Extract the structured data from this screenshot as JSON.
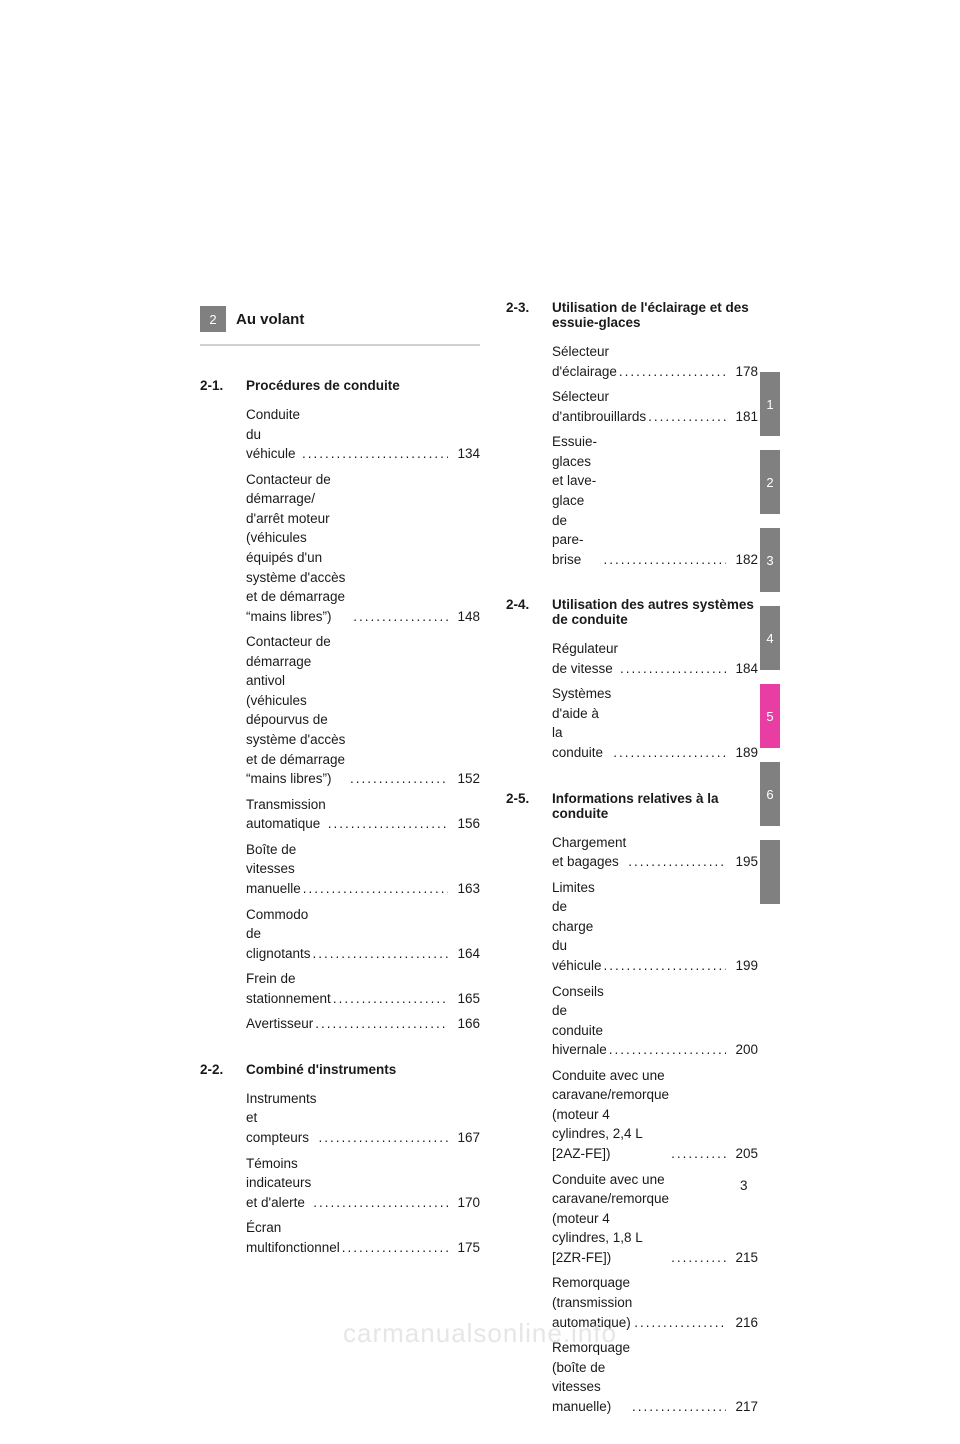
{
  "chapter": {
    "number": "2",
    "title": "Au volant"
  },
  "page_number": "3",
  "watermark": "carmanualsonline.info",
  "tabs": [
    {
      "label": "1",
      "color": "#808080"
    },
    {
      "label": "2",
      "color": "#808080"
    },
    {
      "label": "3",
      "color": "#808080"
    },
    {
      "label": "4",
      "color": "#808080"
    },
    {
      "label": "5",
      "color": "#e83ea3"
    },
    {
      "label": "6",
      "color": "#808080"
    },
    {
      "label": "",
      "color": "#808080"
    }
  ],
  "left": [
    {
      "num": "2-1.",
      "title": "Procédures de conduite",
      "entries": [
        {
          "label": "Conduite du véhicule",
          "page": "134"
        },
        {
          "label": "Contacteur de démarrage/ d'arrêt moteur (véhicules équipés d'un système d'accès et de démarrage “mains libres”)",
          "page": "148"
        },
        {
          "label": "Contacteur de démarrage antivol (véhicules dépourvus de système d'accès et de démarrage “mains libres”)",
          "page": "152"
        },
        {
          "label": "Transmission automatique",
          "page": "156"
        },
        {
          "label": "Boîte de vitesses manuelle",
          "page": "163"
        },
        {
          "label": "Commodo de clignotants",
          "page": "164"
        },
        {
          "label": "Frein de stationnement",
          "page": "165"
        },
        {
          "label": "Avertisseur",
          "page": "166"
        }
      ]
    },
    {
      "num": "2-2.",
      "title": "Combiné d'instruments",
      "entries": [
        {
          "label": "Instruments et compteurs",
          "page": "167"
        },
        {
          "label": "Témoins indicateurs et d'alerte",
          "page": "170"
        },
        {
          "label": "Écran multifonctionnel",
          "page": "175"
        }
      ]
    }
  ],
  "right": [
    {
      "num": "2-3.",
      "title": "Utilisation de l'éclairage et des essuie-glaces",
      "entries": [
        {
          "label": "Sélecteur d'éclairage",
          "page": "178"
        },
        {
          "label": "Sélecteur d'antibrouillards",
          "page": "181"
        },
        {
          "label": "Essuie-glaces et lave-glace de pare-brise",
          "page": "182"
        }
      ]
    },
    {
      "num": "2-4.",
      "title": "Utilisation des autres systèmes de conduite",
      "entries": [
        {
          "label": "Régulateur de vitesse",
          "page": "184"
        },
        {
          "label": "Systèmes d'aide à la conduite",
          "page": "189"
        }
      ]
    },
    {
      "num": "2-5.",
      "title": "Informations relatives à la conduite",
      "entries": [
        {
          "label": "Chargement et bagages",
          "page": "195"
        },
        {
          "label": "Limites de charge du véhicule",
          "page": "199"
        },
        {
          "label": "Conseils de conduite hivernale",
          "page": "200"
        },
        {
          "label": "Conduite avec une caravane/remorque (moteur 4 cylindres, 2,4 L  [2AZ-FE])",
          "page": "205"
        },
        {
          "label": "Conduite avec une caravane/remorque (moteur 4 cylindres, 1,8 L  [2ZR-FE])",
          "page": "215"
        },
        {
          "label": "Remorquage (transmission automatique)",
          "page": "216"
        },
        {
          "label": "Remorquage (boîte de vitesses manuelle)",
          "page": "217"
        }
      ]
    }
  ]
}
